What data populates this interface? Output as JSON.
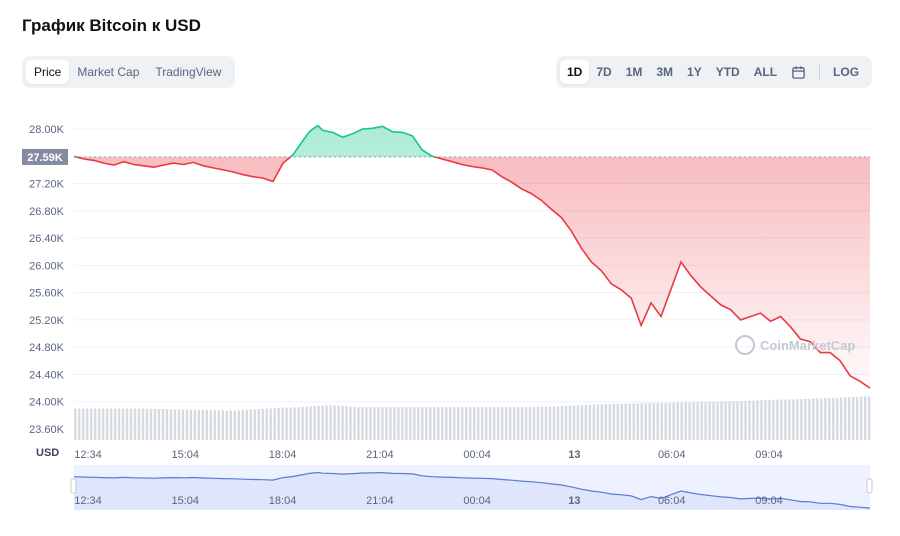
{
  "title": "График Bitcoin к USD",
  "tabs_left": [
    {
      "label": "Price",
      "active": true
    },
    {
      "label": "Market Cap",
      "active": false
    },
    {
      "label": "TradingView",
      "active": false
    }
  ],
  "tabs_right": [
    {
      "label": "1D",
      "active": true
    },
    {
      "label": "7D",
      "active": false
    },
    {
      "label": "1M",
      "active": false
    },
    {
      "label": "3M",
      "active": false
    },
    {
      "label": "1Y",
      "active": false
    },
    {
      "label": "YTD",
      "active": false
    },
    {
      "label": "ALL",
      "active": false
    }
  ],
  "calendar_icon": "calendar-icon",
  "log_label": "LOG",
  "currency_label": "USD",
  "watermark": "CoinMarketCap",
  "colors": {
    "up": "#16c784",
    "down": "#ea3943",
    "navigator": "#5b7bd5",
    "current_badge": "#858ca2"
  },
  "chart_data": {
    "type": "line",
    "x_ticks": [
      "12:34",
      "15:04",
      "18:04",
      "21:04",
      "00:04",
      "13",
      "06:04",
      "09:04"
    ],
    "y_ticks": [
      "28.00K",
      "27.60K",
      "27.20K",
      "26.80K",
      "26.40K",
      "26.00K",
      "25.60K",
      "25.20K",
      "24.80K",
      "24.40K",
      "24.00K",
      "23.60K"
    ],
    "ylim": [
      23600,
      28000
    ],
    "current_price_label": "27.59K",
    "reference_price": 27590,
    "series": [
      {
        "x_hours": [
          0,
          0.3,
          0.6,
          0.9,
          1.2,
          1.5,
          1.8,
          2.1,
          2.4,
          2.7,
          3.0,
          3.3,
          3.6,
          3.9,
          4.2,
          4.5,
          4.8,
          5.1,
          5.4,
          5.7,
          6.0,
          6.3,
          6.6,
          6.9,
          7.1,
          7.2,
          7.35,
          7.5,
          7.8,
          8.1,
          8.4,
          8.7,
          9.0,
          9.3,
          9.6,
          9.9,
          10.2,
          10.5,
          10.8,
          11.1,
          11.4,
          11.7,
          12.0,
          12.3,
          12.6,
          12.9,
          13.2,
          13.5,
          13.8,
          14.1,
          14.4,
          14.7,
          15.0,
          15.3,
          15.6,
          15.9,
          16.2,
          16.5,
          16.8,
          17.1,
          17.4,
          17.7,
          18.0,
          18.3,
          18.6,
          18.9,
          19.2,
          19.5,
          19.8,
          20.1,
          20.4,
          20.7,
          21.0,
          21.3,
          21.6,
          21.9,
          22.2,
          22.5,
          22.8,
          23.1,
          23.4,
          23.7,
          24.0
        ],
        "values": [
          27600,
          27560,
          27540,
          27500,
          27470,
          27520,
          27480,
          27460,
          27440,
          27470,
          27500,
          27480,
          27510,
          27460,
          27430,
          27400,
          27370,
          27330,
          27300,
          27280,
          27230,
          27500,
          27620,
          27830,
          27960,
          28000,
          28050,
          27980,
          27950,
          27880,
          27930,
          28000,
          28010,
          28040,
          27960,
          27950,
          27900,
          27690,
          27600,
          27560,
          27520,
          27480,
          27450,
          27430,
          27400,
          27300,
          27220,
          27120,
          27050,
          26950,
          26820,
          26700,
          26500,
          26250,
          26050,
          25920,
          25730,
          25640,
          25520,
          25120,
          25450,
          25250,
          25650,
          26050,
          25850,
          25680,
          25550,
          25420,
          25350,
          25200,
          25250,
          25300,
          25180,
          25250,
          25100,
          24920,
          24880,
          24720,
          24720,
          24600,
          24380,
          24300,
          24200
        ]
      }
    ],
    "volume": [
      23900,
      23900,
      23900,
      23890,
      23880,
      23870,
      23900,
      23920,
      23950,
      23920,
      23920,
      23920,
      23920,
      23920,
      23920,
      23930,
      23950,
      23970,
      23980,
      23990,
      24000,
      24010,
      24030,
      24040,
      24060,
      24080
    ]
  }
}
